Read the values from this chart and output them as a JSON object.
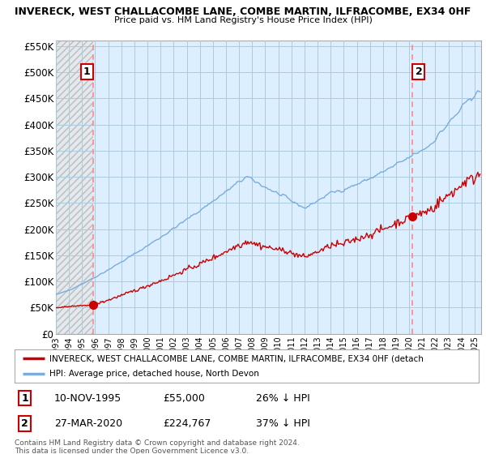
{
  "title": "INVERECK, WEST CHALLACOMBE LANE, COMBE MARTIN, ILFRACOMBE, EX34 0HF",
  "subtitle": "Price paid vs. HM Land Registry's House Price Index (HPI)",
  "sale1_year": 1995.87,
  "sale1_price": 55000,
  "sale1_label": "1",
  "sale1_date": "10-NOV-1995",
  "sale1_pct": "26% ↓ HPI",
  "sale2_year": 2020.23,
  "sale2_price": 224767,
  "sale2_label": "2",
  "sale2_date": "27-MAR-2020",
  "sale2_pct": "37% ↓ HPI",
  "ylim": [
    0,
    560000
  ],
  "xlim_start": 1993.0,
  "xlim_end": 2025.5,
  "property_line_color": "#cc0000",
  "hpi_line_color": "#7aaddb",
  "marker_color": "#cc0000",
  "vline_color": "#ff8888",
  "plot_bg_color": "#ddeeff",
  "background_color": "#ffffff",
  "grid_color": "#aaccdd",
  "legend_label1": "INVERECK, WEST CHALLACOMBE LANE, COMBE MARTIN, ILFRACOMBE, EX34 0HF (detach",
  "legend_label2": "HPI: Average price, detached house, North Devon",
  "footer": "Contains HM Land Registry data © Crown copyright and database right 2024.\nThis data is licensed under the Open Government Licence v3.0.",
  "yticks": [
    0,
    50000,
    100000,
    150000,
    200000,
    250000,
    300000,
    350000,
    400000,
    450000,
    500000,
    550000
  ],
  "ytick_labels": [
    "£0",
    "£50K",
    "£100K",
    "£150K",
    "£200K",
    "£250K",
    "£300K",
    "£350K",
    "£400K",
    "£450K",
    "£500K",
    "£550K"
  ]
}
